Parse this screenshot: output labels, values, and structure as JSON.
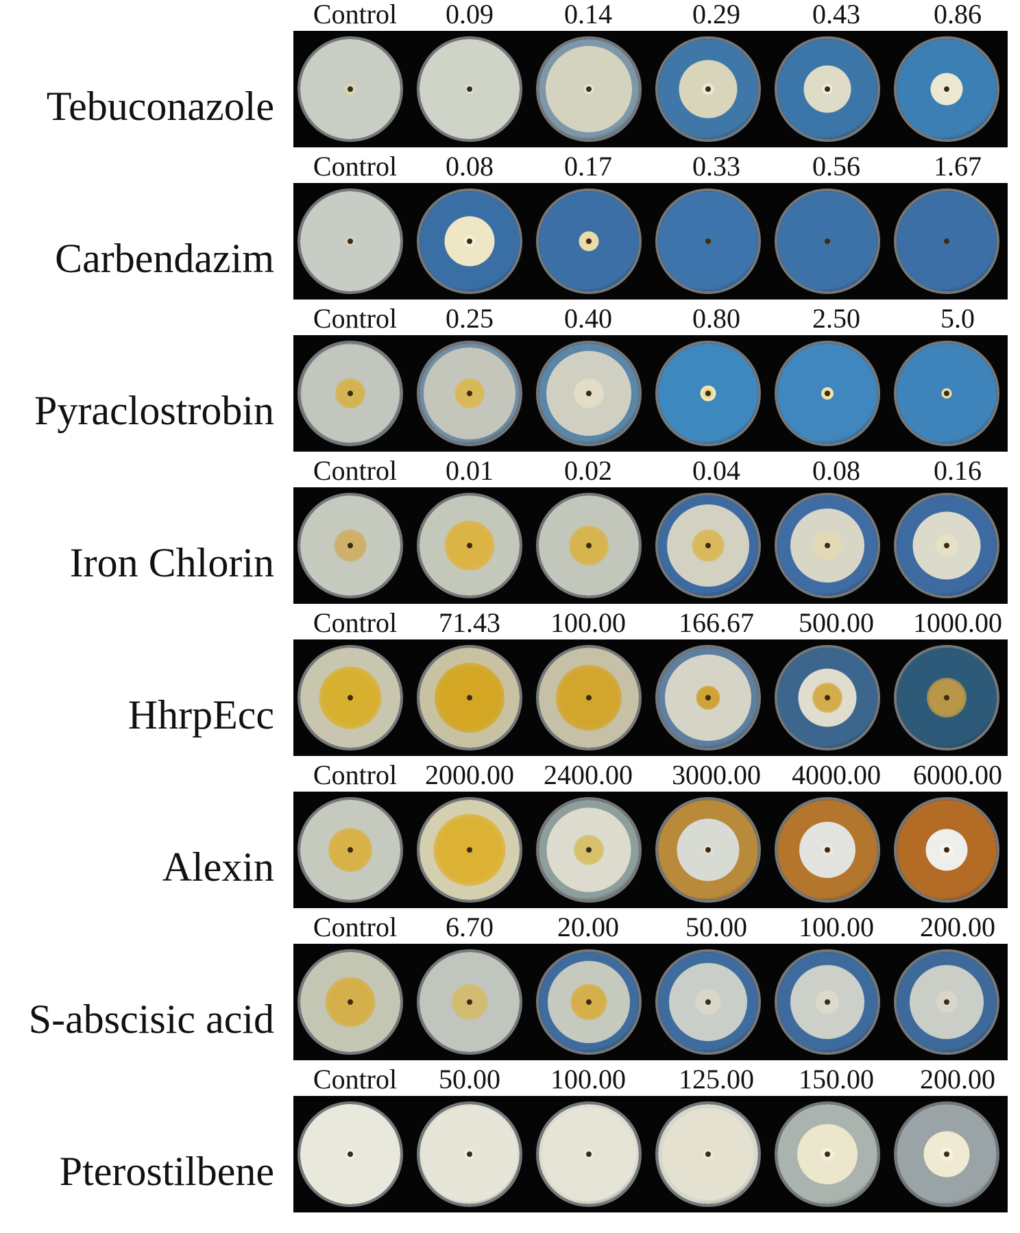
{
  "rows": [
    {
      "agent": "Tebuconazole",
      "concentrations": [
        "Control",
        "0.09",
        "0.14",
        "0.29",
        "0.43",
        "0.86"
      ],
      "plates": [
        {
          "medium": "#b9c2bd",
          "colony_fraction": 1.0,
          "colony_color": "#c8cec4",
          "center_color": "#d9d3b8",
          "center_fraction": 0.12
        },
        {
          "medium": "#b7c0bb",
          "colony_fraction": 1.0,
          "colony_color": "#cfd3c8",
          "center_color": "#e6e6dc",
          "center_fraction": 0.08
        },
        {
          "medium": "#7e97a8",
          "colony_fraction": 0.86,
          "colony_color": "#d3d3bf",
          "center_color": "#e5e3d4",
          "center_fraction": 0.1
        },
        {
          "medium": "#3f78a8",
          "colony_fraction": 0.58,
          "colony_color": "#d8d5bb",
          "center_color": "#ece8d6",
          "center_fraction": 0.12
        },
        {
          "medium": "#3c76a8",
          "colony_fraction": 0.47,
          "colony_color": "#dedbc6",
          "center_color": "#f0eee0",
          "center_fraction": 0.1
        },
        {
          "medium": "#3c7fb4",
          "colony_fraction": 0.32,
          "colony_color": "#ece8d2",
          "center_color": "#f4f1e2",
          "center_fraction": 0.08
        }
      ]
    },
    {
      "agent": "Carbendazim",
      "concentrations": [
        "Control",
        "0.08",
        "0.17",
        "0.33",
        "0.56",
        "1.67"
      ],
      "plates": [
        {
          "medium": "#b9c2bd",
          "colony_fraction": 1.0,
          "colony_color": "#c7ccc4",
          "center_color": "#d8d2bd",
          "center_fraction": 0.1
        },
        {
          "medium": "#3a6fa6",
          "colony_fraction": 0.5,
          "colony_color": "#eee6c4",
          "center_color": "#f5efd6",
          "center_fraction": 0.12
        },
        {
          "medium": "#3b6fa6",
          "colony_fraction": 0.2,
          "colony_color": "#e9dcaa",
          "center_color": "#c9b070",
          "center_fraction": 0.06
        },
        {
          "medium": "#3d74ab",
          "colony_fraction": 0.0,
          "colony_color": "#3d74ab",
          "center_color": "#7a6a3a",
          "center_fraction": 0.06
        },
        {
          "medium": "#3d72a9",
          "colony_fraction": 0.0,
          "colony_color": "#3d72a9",
          "center_color": "#7a6a3a",
          "center_fraction": 0.06
        },
        {
          "medium": "#3c6fa6",
          "colony_fraction": 0.0,
          "colony_color": "#3c6fa6",
          "center_color": "#6d5c30",
          "center_fraction": 0.05
        }
      ]
    },
    {
      "agent": "Pyraclostrobin",
      "concentrations": [
        "Control",
        "0.25",
        "0.40",
        "0.80",
        "2.50",
        "5.0"
      ],
      "plates": [
        {
          "medium": "#9aa8ac",
          "colony_fraction": 0.98,
          "colony_color": "#c2c6bd",
          "center_color": "#d4b452",
          "center_fraction": 0.3
        },
        {
          "medium": "#6f8ea6",
          "colony_fraction": 0.92,
          "colony_color": "#c4c6bb",
          "center_color": "#d9b957",
          "center_fraction": 0.3
        },
        {
          "medium": "#5a86a8",
          "colony_fraction": 0.85,
          "colony_color": "#cfd0c2",
          "center_color": "#e2ddc6",
          "center_fraction": 0.3
        },
        {
          "medium": "#3e88c0",
          "colony_fraction": 0.16,
          "colony_color": "#f2e7b5",
          "center_color": "#e8d68e",
          "center_fraction": 0.1
        },
        {
          "medium": "#3f87be",
          "colony_fraction": 0.12,
          "colony_color": "#f0e3ad",
          "center_color": "#c8a650",
          "center_fraction": 0.06
        },
        {
          "medium": "#3e84bb",
          "colony_fraction": 0.1,
          "colony_color": "#eee0a8",
          "center_color": "#c0a04c",
          "center_fraction": 0.05
        }
      ]
    },
    {
      "agent": "Iron Chlorin",
      "concentrations": [
        "Control",
        "0.01",
        "0.02",
        "0.04",
        "0.08",
        "0.16"
      ],
      "plates": [
        {
          "medium": "#b7bfbb",
          "colony_fraction": 1.0,
          "colony_color": "#c5c9be",
          "center_color": "#cdb06a",
          "center_fraction": 0.32
        },
        {
          "medium": "#b3bdb8",
          "colony_fraction": 1.0,
          "colony_color": "#c4c8bb",
          "center_color": "#dcb446",
          "center_fraction": 0.5
        },
        {
          "medium": "#afb9b6",
          "colony_fraction": 1.0,
          "colony_color": "#c3c7bb",
          "center_color": "#d8b44e",
          "center_fraction": 0.4
        },
        {
          "medium": "#3d6aa0",
          "colony_fraction": 0.82,
          "colony_color": "#d2d1c2",
          "center_color": "#d9b95c",
          "center_fraction": 0.32
        },
        {
          "medium": "#3e6ca3",
          "colony_fraction": 0.74,
          "colony_color": "#d8d6c6",
          "center_color": "#e2d9b5",
          "center_fraction": 0.3
        },
        {
          "medium": "#3d6aa0",
          "colony_fraction": 0.68,
          "colony_color": "#dcdacb",
          "center_color": "#e7e2c6",
          "center_fraction": 0.22
        }
      ]
    },
    {
      "agent": "HhrpEcc",
      "concentrations": [
        "Control",
        "71.43",
        "100.00",
        "166.67",
        "500.00",
        "1000.00"
      ],
      "plates": [
        {
          "medium": "#b2bab5",
          "colony_fraction": 1.0,
          "colony_color": "#c9c6b0",
          "center_color": "#d8b030",
          "center_fraction": 0.62
        },
        {
          "medium": "#aeb6b2",
          "colony_fraction": 1.0,
          "colony_color": "#c9c2a2",
          "center_color": "#d3a624",
          "center_fraction": 0.7
        },
        {
          "medium": "#aeb6b1",
          "colony_fraction": 1.0,
          "colony_color": "#c6c1a6",
          "center_color": "#d2a62c",
          "center_fraction": 0.66
        },
        {
          "medium": "#5e7fa0",
          "colony_fraction": 0.86,
          "colony_color": "#d6d4c6",
          "center_color": "#d0a434",
          "center_fraction": 0.24
        },
        {
          "medium": "#3d668f",
          "colony_fraction": 0.58,
          "colony_color": "#e0ddcf",
          "center_color": "#d2ad4a",
          "center_fraction": 0.3
        },
        {
          "medium": "#2e5a79",
          "colony_fraction": 0.16,
          "colony_color": "#e8e4cf",
          "center_color": "#b9974a",
          "center_fraction": 0.4
        }
      ]
    },
    {
      "agent": "Alexin",
      "concentrations": [
        "Control",
        "2000.00",
        "2400.00",
        "3000.00",
        "4000.00",
        "6000.00"
      ],
      "plates": [
        {
          "medium": "#b7bfb9",
          "colony_fraction": 1.0,
          "colony_color": "#c6c9bd",
          "center_color": "#d8b147",
          "center_fraction": 0.44
        },
        {
          "medium": "#b6bcb2",
          "colony_fraction": 1.0,
          "colony_color": "#d4cfae",
          "center_color": "#dcb234",
          "center_fraction": 0.72
        },
        {
          "medium": "#8e9e9c",
          "colony_fraction": 0.84,
          "colony_color": "#dcdbcd",
          "center_color": "#d8bf6c",
          "center_fraction": 0.3
        },
        {
          "medium": "#b98a3a",
          "colony_fraction": 0.62,
          "colony_color": "#d8dad4",
          "center_color": "#e4e2d4",
          "center_fraction": 0.1
        },
        {
          "medium": "#b4762c",
          "colony_fraction": 0.56,
          "colony_color": "#e2e3de",
          "center_color": "#ede9da",
          "center_fraction": 0.12
        },
        {
          "medium": "#b36b26",
          "colony_fraction": 0.42,
          "colony_color": "#eeefeb",
          "center_color": "#f6f4ec",
          "center_fraction": 0.14
        }
      ]
    },
    {
      "agent": "S-abscisic acid",
      "concentrations": [
        "Control",
        "6.70",
        "20.00",
        "50.00",
        "100.00",
        "200.00"
      ],
      "plates": [
        {
          "medium": "#b4bbb4",
          "colony_fraction": 1.0,
          "colony_color": "#c4c6b4",
          "center_color": "#d5b04a",
          "center_fraction": 0.5
        },
        {
          "medium": "#a9b4b2",
          "colony_fraction": 1.0,
          "colony_color": "#c0c5bd",
          "center_color": "#d4bb72",
          "center_fraction": 0.36
        },
        {
          "medium": "#3f6c9e",
          "colony_fraction": 0.82,
          "colony_color": "#c6c9bd",
          "center_color": "#d5b04a",
          "center_fraction": 0.36
        },
        {
          "medium": "#3f6c9e",
          "colony_fraction": 0.78,
          "colony_color": "#cacec8",
          "center_color": "#d9d7c9",
          "center_fraction": 0.26
        },
        {
          "medium": "#3e6b9d",
          "colony_fraction": 0.74,
          "colony_color": "#cdd0c8",
          "center_color": "#dcdacd",
          "center_fraction": 0.24
        },
        {
          "medium": "#3e6a9b",
          "colony_fraction": 0.74,
          "colony_color": "#cbcec7",
          "center_color": "#dad7ca",
          "center_fraction": 0.22
        }
      ]
    },
    {
      "agent": "Pterostilbene",
      "concentrations": [
        "Control",
        "50.00",
        "100.00",
        "125.00",
        "150.00",
        "200.00"
      ],
      "plates": [
        {
          "medium": "#e4e4d6",
          "colony_fraction": 1.0,
          "colony_color": "#e9e8dc",
          "center_color": "#f2f0e4",
          "center_fraction": 0.1
        },
        {
          "medium": "#dedfd2",
          "colony_fraction": 0.96,
          "colony_color": "#e7e5d7",
          "center_color": "#f0ede0",
          "center_fraction": 0.1
        },
        {
          "medium": "#dcddd0",
          "colony_fraction": 0.94,
          "colony_color": "#e6e4d6",
          "center_color": "#efebdd",
          "center_fraction": 0.1
        },
        {
          "medium": "#d6d8cc",
          "colony_fraction": 0.92,
          "colony_color": "#e4e1d1",
          "center_color": "#eee9d9",
          "center_fraction": 0.1
        },
        {
          "medium": "#aab3ae",
          "colony_fraction": 0.6,
          "colony_color": "#ece6cc",
          "center_color": "#f3efdd",
          "center_fraction": 0.14
        },
        {
          "medium": "#9aa3a6",
          "colony_fraction": 0.46,
          "colony_color": "#f0ead2",
          "center_color": "#f6f2e2",
          "center_fraction": 0.14
        }
      ]
    }
  ]
}
